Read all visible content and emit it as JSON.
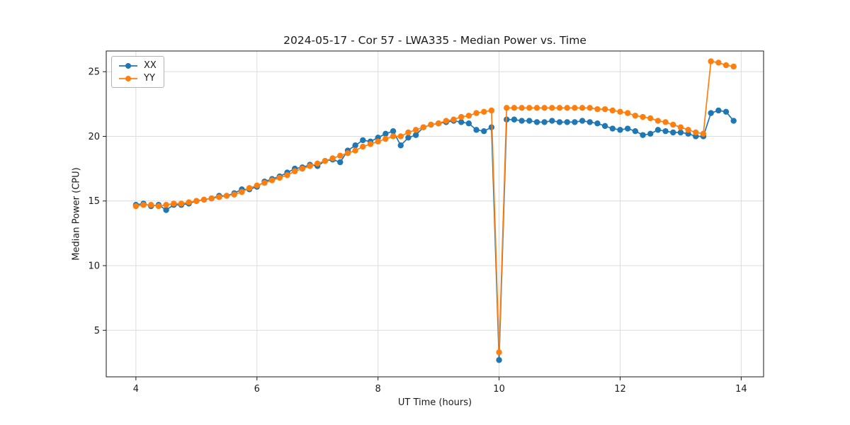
{
  "chart_data": {
    "type": "line",
    "title": "2024-05-17 - Cor 57 - LWA335 - Median Power vs. Time",
    "xlabel": "UT Time (hours)",
    "ylabel": "Median Power (CPU)",
    "xlim": [
      3.51,
      14.37
    ],
    "ylim": [
      1.4,
      26.6
    ],
    "xticks": [
      4,
      6,
      8,
      10,
      12,
      14
    ],
    "yticks": [
      5,
      10,
      15,
      20,
      25
    ],
    "grid": true,
    "legend_position": "upper-left",
    "x": [
      4.0,
      4.125,
      4.25,
      4.375,
      4.5,
      4.625,
      4.75,
      4.875,
      5.0,
      5.125,
      5.25,
      5.375,
      5.5,
      5.625,
      5.75,
      5.875,
      6.0,
      6.125,
      6.25,
      6.375,
      6.5,
      6.625,
      6.75,
      6.875,
      7.0,
      7.125,
      7.25,
      7.375,
      7.5,
      7.625,
      7.75,
      7.875,
      8.0,
      8.125,
      8.25,
      8.375,
      8.5,
      8.625,
      8.75,
      8.875,
      9.0,
      9.125,
      9.25,
      9.375,
      9.5,
      9.625,
      9.75,
      9.875,
      10.0,
      10.125,
      10.25,
      10.375,
      10.5,
      10.625,
      10.75,
      10.875,
      11.0,
      11.125,
      11.25,
      11.375,
      11.5,
      11.625,
      11.75,
      11.875,
      12.0,
      12.125,
      12.25,
      12.375,
      12.5,
      12.625,
      12.75,
      12.875,
      13.0,
      13.125,
      13.25,
      13.375,
      13.5,
      13.625,
      13.75,
      13.875
    ],
    "series": [
      {
        "name": "XX",
        "color": "#1f77b4",
        "values": [
          14.7,
          14.8,
          14.6,
          14.7,
          14.3,
          14.7,
          14.7,
          14.8,
          15.0,
          15.1,
          15.2,
          15.4,
          15.4,
          15.6,
          15.9,
          15.9,
          16.1,
          16.5,
          16.7,
          16.9,
          17.2,
          17.5,
          17.6,
          17.8,
          17.7,
          18.1,
          18.2,
          18.0,
          18.9,
          19.3,
          19.7,
          19.6,
          19.9,
          20.2,
          20.4,
          19.3,
          19.9,
          20.1,
          20.7,
          20.9,
          21.0,
          21.1,
          21.2,
          21.1,
          21.0,
          20.5,
          20.4,
          20.7,
          2.7,
          21.3,
          21.3,
          21.2,
          21.2,
          21.1,
          21.1,
          21.2,
          21.1,
          21.1,
          21.1,
          21.2,
          21.1,
          21.0,
          20.8,
          20.6,
          20.5,
          20.6,
          20.4,
          20.1,
          20.2,
          20.5,
          20.4,
          20.3,
          20.3,
          20.2,
          20.0,
          20.0,
          21.8,
          22.0,
          21.9,
          21.2
        ]
      },
      {
        "name": "YY",
        "color": "#ff7f0e",
        "values": [
          14.6,
          14.7,
          14.7,
          14.6,
          14.7,
          14.8,
          14.8,
          14.9,
          15.0,
          15.1,
          15.2,
          15.3,
          15.4,
          15.5,
          15.7,
          16.0,
          16.2,
          16.4,
          16.6,
          16.8,
          17.0,
          17.3,
          17.5,
          17.7,
          17.9,
          18.1,
          18.3,
          18.5,
          18.7,
          18.9,
          19.2,
          19.4,
          19.6,
          19.8,
          20.0,
          20.0,
          20.3,
          20.5,
          20.7,
          20.9,
          21.0,
          21.2,
          21.3,
          21.5,
          21.6,
          21.8,
          21.9,
          22.0,
          3.3,
          22.2,
          22.2,
          22.2,
          22.2,
          22.2,
          22.2,
          22.2,
          22.2,
          22.2,
          22.2,
          22.2,
          22.2,
          22.1,
          22.1,
          22.0,
          21.9,
          21.8,
          21.6,
          21.5,
          21.4,
          21.2,
          21.1,
          20.9,
          20.7,
          20.5,
          20.3,
          20.2,
          25.8,
          25.7,
          25.5,
          25.4
        ]
      }
    ],
    "colors": {
      "grid": "#dcdcdc",
      "spine": "#1a1a1a",
      "tick_label": "#1a1a1a",
      "background": "#ffffff"
    }
  }
}
